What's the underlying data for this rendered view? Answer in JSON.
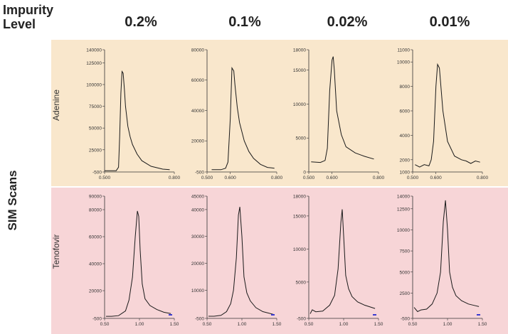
{
  "header": {
    "title": "Impurity\nLevel"
  },
  "side_title": "SIM Scans",
  "columns": [
    "0.2%",
    "0.1%",
    "0.02%",
    "0.01%"
  ],
  "rows": [
    "Adenine",
    "Tenofovir"
  ],
  "colors": {
    "adenine_band": "#f9e7cc",
    "tenofovir_band": "#f7d5d7",
    "trace": "#1a1a1a",
    "marker": "#3a3ad0"
  },
  "chart_data": [
    {
      "type": "line",
      "row": "Adenine",
      "column": "0.2%",
      "xlim": [
        0.5,
        0.8
      ],
      "ylim": [
        -500,
        140000
      ],
      "x_ticks": [
        "0.500",
        "0.800"
      ],
      "y_ticks": [
        "140000",
        "125000",
        "100000",
        "75000",
        "50000",
        "25000",
        "-500"
      ],
      "x": [
        0.5,
        0.53,
        0.55,
        0.56,
        0.565,
        0.57,
        0.575,
        0.58,
        0.585,
        0.59,
        0.6,
        0.61,
        0.62,
        0.64,
        0.66,
        0.7,
        0.75,
        0.78
      ],
      "y": [
        1000,
        1000,
        1000,
        5000,
        40000,
        90000,
        115000,
        113000,
        95000,
        75000,
        52000,
        40000,
        31000,
        20000,
        12500,
        6000,
        2800,
        2200
      ]
    },
    {
      "type": "line",
      "row": "Adenine",
      "column": "0.1%",
      "xlim": [
        0.5,
        0.8
      ],
      "ylim": [
        -500,
        80000
      ],
      "x_ticks": [
        "0.500",
        "0.600",
        "0.800"
      ],
      "y_ticks": [
        "80000",
        "60000",
        "40000",
        "20000",
        "-500"
      ],
      "x": [
        0.52,
        0.56,
        0.58,
        0.59,
        0.6,
        0.607,
        0.615,
        0.62,
        0.63,
        0.64,
        0.66,
        0.68,
        0.7,
        0.73,
        0.76,
        0.79
      ],
      "y": [
        1000,
        1000,
        2000,
        6000,
        35000,
        68000,
        66000,
        57000,
        42000,
        32000,
        20000,
        13000,
        8500,
        4500,
        2500,
        2000
      ]
    },
    {
      "type": "line",
      "row": "Adenine",
      "column": "0.02%",
      "xlim": [
        0.5,
        0.8
      ],
      "ylim": [
        0,
        18000
      ],
      "x_ticks": [
        "0.500",
        "0.600",
        "0.800"
      ],
      "y_ticks": [
        "18000",
        "15000",
        "10000",
        "5000",
        "0"
      ],
      "x": [
        0.51,
        0.55,
        0.57,
        0.58,
        0.59,
        0.6,
        0.605,
        0.61,
        0.62,
        0.64,
        0.66,
        0.7,
        0.74,
        0.78
      ],
      "y": [
        1500,
        1400,
        1700,
        3500,
        12000,
        16500,
        17000,
        15000,
        9000,
        5500,
        3700,
        2800,
        2300,
        1900
      ]
    },
    {
      "type": "line",
      "row": "Adenine",
      "column": "0.01%",
      "xlim": [
        0.5,
        0.8
      ],
      "ylim": [
        1000,
        11000
      ],
      "x_ticks": [
        "0.500",
        "0.600",
        "0.800"
      ],
      "y_ticks": [
        "11000",
        "10000",
        "8000",
        "6000",
        "4000",
        "2000",
        "1000"
      ],
      "x": [
        0.51,
        0.53,
        0.55,
        0.57,
        0.58,
        0.59,
        0.6,
        0.607,
        0.615,
        0.63,
        0.65,
        0.68,
        0.71,
        0.73,
        0.75,
        0.77,
        0.79
      ],
      "y": [
        1600,
        1400,
        1600,
        1500,
        2000,
        3500,
        8000,
        9800,
        9500,
        6000,
        3500,
        2300,
        2000,
        1900,
        1700,
        1900,
        1800
      ]
    },
    {
      "type": "line",
      "row": "Tenofovir",
      "column": "0.2%",
      "xlim": [
        0.5,
        1.5
      ],
      "ylim": [
        -500,
        90000
      ],
      "x_ticks": [
        "0.50",
        "1.00",
        "1.50"
      ],
      "y_ticks": [
        "90000",
        "80000",
        "60000",
        "40000",
        "20000",
        "-500"
      ],
      "x": [
        0.52,
        0.6,
        0.7,
        0.8,
        0.85,
        0.9,
        0.94,
        0.97,
        0.99,
        1.01,
        1.04,
        1.08,
        1.15,
        1.25,
        1.35,
        1.45
      ],
      "y": [
        1000,
        1000,
        1500,
        5000,
        13000,
        30000,
        60000,
        79000,
        75000,
        50000,
        25000,
        14000,
        9000,
        6000,
        4000,
        3000
      ]
    },
    {
      "type": "line",
      "row": "Tenofovir",
      "column": "0.1%",
      "xlim": [
        0.5,
        1.5
      ],
      "ylim": [
        -500,
        45000
      ],
      "x_ticks": [
        "0.50",
        "1.00",
        "1.50"
      ],
      "y_ticks": [
        "45000",
        "40000",
        "30000",
        "20000",
        "10000",
        "-500"
      ],
      "x": [
        0.52,
        0.6,
        0.7,
        0.78,
        0.84,
        0.88,
        0.92,
        0.95,
        0.97,
        1.0,
        1.03,
        1.07,
        1.12,
        1.2,
        1.3,
        1.45
      ],
      "y": [
        300,
        300,
        600,
        2000,
        5000,
        10000,
        22000,
        38000,
        41000,
        30000,
        15000,
        9000,
        6000,
        3500,
        2000,
        1000
      ]
    },
    {
      "type": "line",
      "row": "Tenofovir",
      "column": "0.02%",
      "xlim": [
        0.5,
        1.5
      ],
      "ylim": [
        -500,
        18000
      ],
      "x_ticks": [
        "0.50",
        "1.00",
        "1.50"
      ],
      "y_ticks": [
        "18000",
        "15000",
        "10000",
        "5000",
        "-500"
      ],
      "x": [
        0.52,
        0.55,
        0.6,
        0.7,
        0.8,
        0.87,
        0.92,
        0.96,
        0.98,
        1.0,
        1.03,
        1.07,
        1.12,
        1.2,
        1.3,
        1.45
      ],
      "y": [
        200,
        800,
        500,
        600,
        1500,
        3000,
        7000,
        14000,
        16000,
        12000,
        6000,
        4000,
        2800,
        2000,
        1500,
        1000
      ]
    },
    {
      "type": "line",
      "row": "Tenofovir",
      "column": "0.01%",
      "xlim": [
        0.5,
        1.5
      ],
      "ylim": [
        -500,
        14000
      ],
      "x_ticks": [
        "0.50",
        "1.00",
        "1.50"
      ],
      "y_ticks": [
        "14000",
        "12500",
        "10000",
        "7500",
        "5000",
        "2500",
        "-500"
      ],
      "x": [
        0.52,
        0.57,
        0.62,
        0.7,
        0.78,
        0.85,
        0.9,
        0.94,
        0.97,
        1.0,
        1.03,
        1.07,
        1.12,
        1.2,
        1.3,
        1.4,
        1.45
      ],
      "y": [
        800,
        300,
        500,
        600,
        1200,
        2500,
        5000,
        11000,
        13500,
        10000,
        5000,
        3200,
        2200,
        1600,
        1200,
        1000,
        900
      ]
    }
  ]
}
